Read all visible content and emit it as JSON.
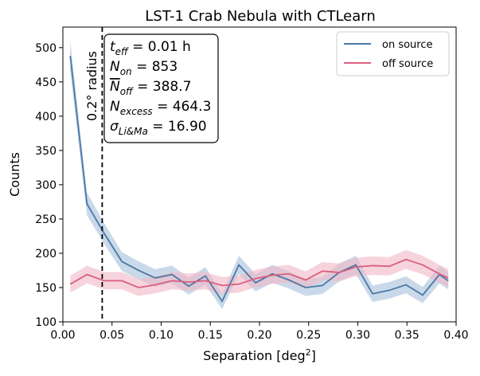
{
  "chart_data": {
    "type": "line",
    "title": "LST-1 Crab Nebula with CTLearn",
    "xlabel": "Separation [deg",
    "xlabel_sup": "2",
    "xlabel_suffix": "]",
    "ylabel": "Counts",
    "xlim": [
      0.0,
      0.4
    ],
    "ylim": [
      100,
      530
    ],
    "xticks": [
      0.0,
      0.05,
      0.1,
      0.15,
      0.2,
      0.25,
      0.3,
      0.35,
      0.4
    ],
    "xtick_labels": [
      "0.00",
      "0.05",
      "0.10",
      "0.15",
      "0.20",
      "0.25",
      "0.30",
      "0.35",
      "0.40"
    ],
    "yticks": [
      100,
      150,
      200,
      250,
      300,
      350,
      400,
      450,
      500
    ],
    "ytick_labels": [
      "100",
      "150",
      "200",
      "250",
      "300",
      "350",
      "400",
      "450",
      "500"
    ],
    "grid": false,
    "legend_position": "top-right",
    "x": [
      0.0075,
      0.0245,
      0.042,
      0.06,
      0.077,
      0.094,
      0.111,
      0.128,
      0.145,
      0.162,
      0.179,
      0.196,
      0.213,
      0.23,
      0.247,
      0.264,
      0.281,
      0.298,
      0.315,
      0.332,
      0.349,
      0.366,
      0.383,
      0.392
    ],
    "series": [
      {
        "name": "on source",
        "color": "#4a79a5",
        "band_color": "#a7bfda",
        "values": [
          488,
          272,
          229,
          188,
          175,
          164,
          169,
          152,
          167,
          130,
          183,
          157,
          170,
          161,
          150,
          153,
          172,
          183,
          141,
          146,
          154,
          139,
          169,
          160
        ]
      },
      {
        "name": "off source",
        "color": "#d95f7f",
        "band_color": "#f2b8c6",
        "values": [
          155,
          169,
          160,
          160,
          150,
          154,
          160,
          158,
          160,
          153,
          155,
          163,
          168,
          170,
          161,
          174,
          172,
          180,
          182,
          181,
          191,
          183,
          170,
          164
        ]
      }
    ],
    "vline": {
      "x": 0.04,
      "label": "0.2° radius"
    },
    "stats": [
      {
        "sym": "t",
        "sub": "eff",
        "rest": " = 0.01 h"
      },
      {
        "sym": "N",
        "sub": "on",
        "rest": " = 853"
      },
      {
        "sym": "N",
        "sub": "off",
        "rest": " = 388.7",
        "overline": true
      },
      {
        "sym": "N",
        "sub": "excess",
        "rest": " = 464.3"
      },
      {
        "sym": "σ",
        "sub": "Li&Ma",
        "rest": " = 16.90"
      }
    ]
  }
}
